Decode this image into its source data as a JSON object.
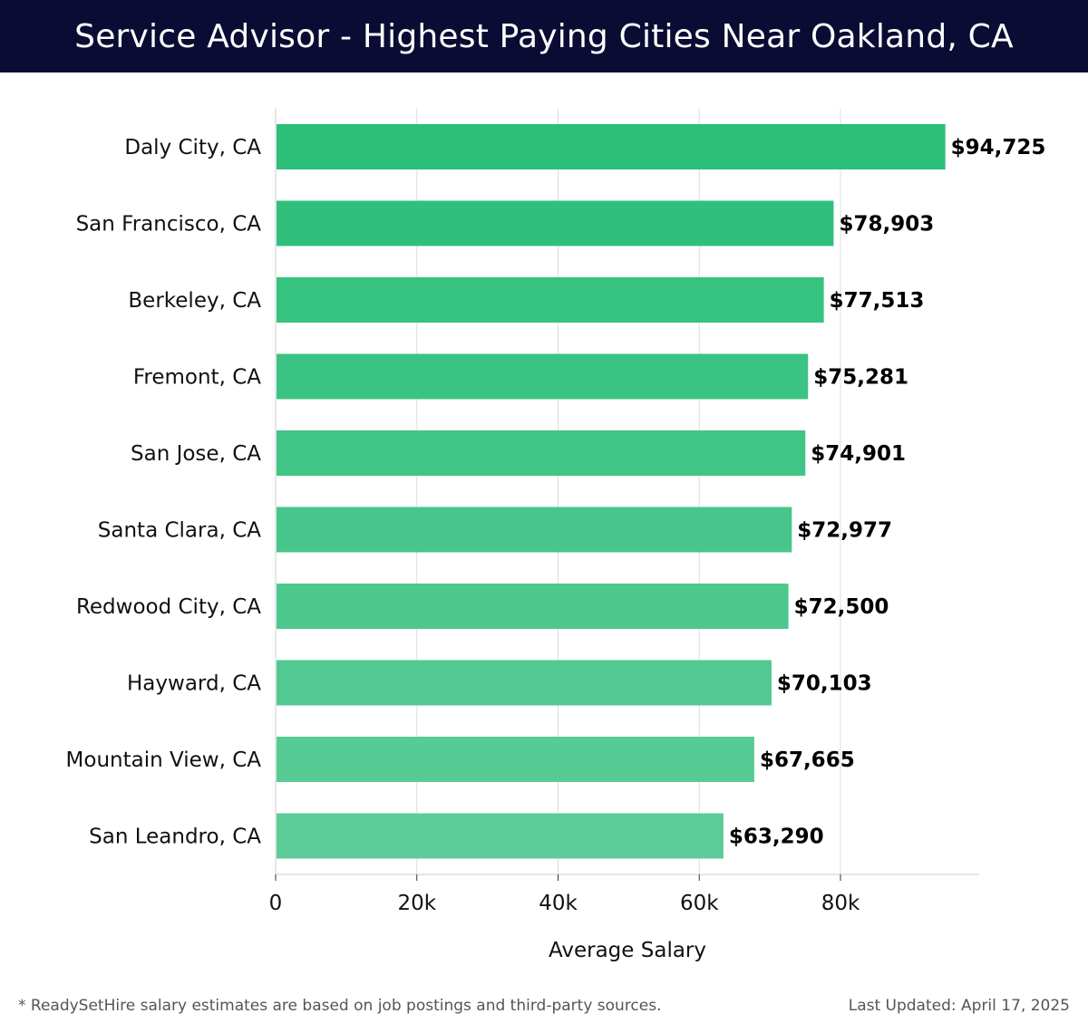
{
  "header": {
    "title": "Service Advisor - Highest Paying Cities Near Oakland, CA"
  },
  "footer": {
    "note": "* ReadySetHire salary estimates are based on job postings and third-party sources.",
    "updated": "Last Updated: April 17, 2025"
  },
  "colors": {
    "header_bg": "#0b0c33",
    "bar_top": "#2bbf78",
    "bar_bottom": "#5ccc98",
    "grid": "#dddddd"
  },
  "chart_data": {
    "type": "bar",
    "orientation": "horizontal",
    "categories": [
      "Daly City, CA",
      "San Francisco, CA",
      "Berkeley, CA",
      "Fremont, CA",
      "San Jose, CA",
      "Santa Clara, CA",
      "Redwood City, CA",
      "Hayward, CA",
      "Mountain View, CA",
      "San Leandro, CA"
    ],
    "values": [
      94725,
      78903,
      77513,
      75281,
      74901,
      72977,
      72500,
      70103,
      67665,
      63290
    ],
    "value_labels": [
      "$94,725",
      "$78,903",
      "$77,513",
      "$75,281",
      "$74,901",
      "$72,977",
      "$72,500",
      "$70,103",
      "$67,665",
      "$63,290"
    ],
    "xlabel": "Average Salary",
    "ylabel": "",
    "xlim": [
      0,
      100000
    ],
    "xticks": [
      0,
      20000,
      40000,
      60000,
      80000
    ],
    "xtick_labels": [
      "0",
      "20k",
      "40k",
      "60k",
      "80k"
    ],
    "grid": true,
    "legend": "none"
  }
}
